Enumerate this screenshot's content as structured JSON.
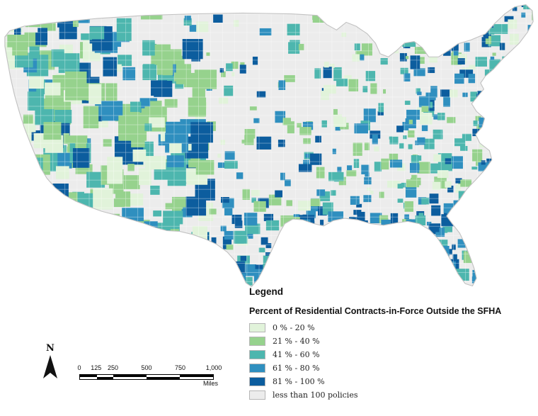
{
  "map": {
    "name": "US county choropleth of residential contracts-in-force outside the SFHA",
    "land_color": "#ececec",
    "county_border_color": "#ffffff",
    "outline_color": "#c2c2c2"
  },
  "legend": {
    "title": "Legend",
    "subtitle": "Percent of Residential Contracts-in-Force Outside the SFHA",
    "items": [
      {
        "label": "0 % - 20 %",
        "color": "#e1f3da"
      },
      {
        "label": "21 % - 40 %",
        "color": "#96d28d"
      },
      {
        "label": "41 % - 60 %",
        "color": "#4db6ae"
      },
      {
        "label": "61 % - 80 %",
        "color": "#2f8fbf"
      },
      {
        "label": "81 % - 100 %",
        "color": "#0c5d9e"
      },
      {
        "label": "less than 100 policies",
        "color": "#ececec"
      }
    ]
  },
  "north_arrow": {
    "label": "N"
  },
  "scale_bar": {
    "tick_labels": [
      "0",
      "125",
      "250",
      "500",
      "750",
      "1,000"
    ],
    "unit_label": "Miles"
  }
}
